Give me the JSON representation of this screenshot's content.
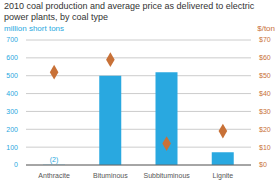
{
  "chart_data": {
    "type": "bar",
    "title": "2010 coal production and average price as delivered to electric power plants, by coal type",
    "categories": [
      "Anthracite",
      "Bituminous",
      "Subbituminous",
      "Lignite"
    ],
    "series": [
      {
        "type": "bar",
        "color": "#29a8e0",
        "values": [
          2,
          500,
          520,
          72
        ]
      },
      {
        "type": "scatter",
        "marker": "diamond",
        "color": "#c87137",
        "axis": "y2",
        "values": [
          52,
          59,
          12,
          19
        ]
      }
    ],
    "ylabel": "million short tons",
    "y2label": "$/ton",
    "ylim": [
      0,
      700
    ],
    "yticks": [
      0,
      100,
      200,
      300,
      400,
      500,
      600,
      700
    ],
    "y2lim": [
      0,
      70
    ],
    "y2ticks": [
      {
        "value": 0,
        "label": "$0"
      },
      {
        "value": 10,
        "label": "$10"
      },
      {
        "value": 20,
        "label": "$20"
      },
      {
        "value": 30,
        "label": "$30"
      },
      {
        "value": 40,
        "label": "$40"
      },
      {
        "value": 50,
        "label": "$50"
      },
      {
        "value": 60,
        "label": "$60"
      },
      {
        "value": 70,
        "label": "$70"
      }
    ],
    "annotations": [
      {
        "text": "(2)",
        "x": "Anthracite"
      }
    ],
    "grid": true
  }
}
